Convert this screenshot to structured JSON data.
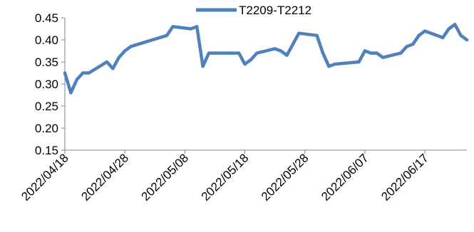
{
  "chart_data": {
    "type": "line",
    "title": "",
    "xlabel": "",
    "ylabel": "",
    "ylim": [
      0.15,
      0.45
    ],
    "yticks": [
      "0.15",
      "0.20",
      "0.25",
      "0.30",
      "0.35",
      "0.40",
      "0.45"
    ],
    "xlim": [
      "2022-04-18",
      "2022-06-24"
    ],
    "xticks": [
      "2022/04/18",
      "2022/04/28",
      "2022/05/08",
      "2022/05/18",
      "2022/05/28",
      "2022/06/07",
      "2022/06/17"
    ],
    "grid": false,
    "legend": {
      "position": "top-center",
      "entries": [
        "T2209-T2212"
      ]
    },
    "series": [
      {
        "name": "T2209-T2212",
        "color": "#4f81bd",
        "x": [
          "2022-04-18",
          "2022-04-19",
          "2022-04-20",
          "2022-04-21",
          "2022-04-22",
          "2022-04-25",
          "2022-04-26",
          "2022-04-27",
          "2022-04-28",
          "2022-04-29",
          "2022-05-05",
          "2022-05-06",
          "2022-05-09",
          "2022-05-10",
          "2022-05-11",
          "2022-05-12",
          "2022-05-13",
          "2022-05-16",
          "2022-05-17",
          "2022-05-18",
          "2022-05-19",
          "2022-05-20",
          "2022-05-23",
          "2022-05-24",
          "2022-05-25",
          "2022-05-26",
          "2022-05-27",
          "2022-05-30",
          "2022-05-31",
          "2022-06-01",
          "2022-06-02",
          "2022-06-06",
          "2022-06-07",
          "2022-06-08",
          "2022-06-09",
          "2022-06-10",
          "2022-06-13",
          "2022-06-14",
          "2022-06-15",
          "2022-06-16",
          "2022-06-17",
          "2022-06-20",
          "2022-06-21",
          "2022-06-22",
          "2022-06-23",
          "2022-06-24"
        ],
        "values": [
          0.325,
          0.28,
          0.31,
          0.325,
          0.325,
          0.35,
          0.335,
          0.36,
          0.375,
          0.385,
          0.41,
          0.43,
          0.425,
          0.43,
          0.34,
          0.37,
          0.37,
          0.37,
          0.37,
          0.345,
          0.355,
          0.37,
          0.38,
          0.375,
          0.365,
          0.39,
          0.415,
          0.41,
          0.37,
          0.34,
          0.345,
          0.35,
          0.375,
          0.37,
          0.37,
          0.36,
          0.37,
          0.385,
          0.39,
          0.41,
          0.42,
          0.405,
          0.425,
          0.435,
          0.41,
          0.4
        ]
      }
    ]
  }
}
